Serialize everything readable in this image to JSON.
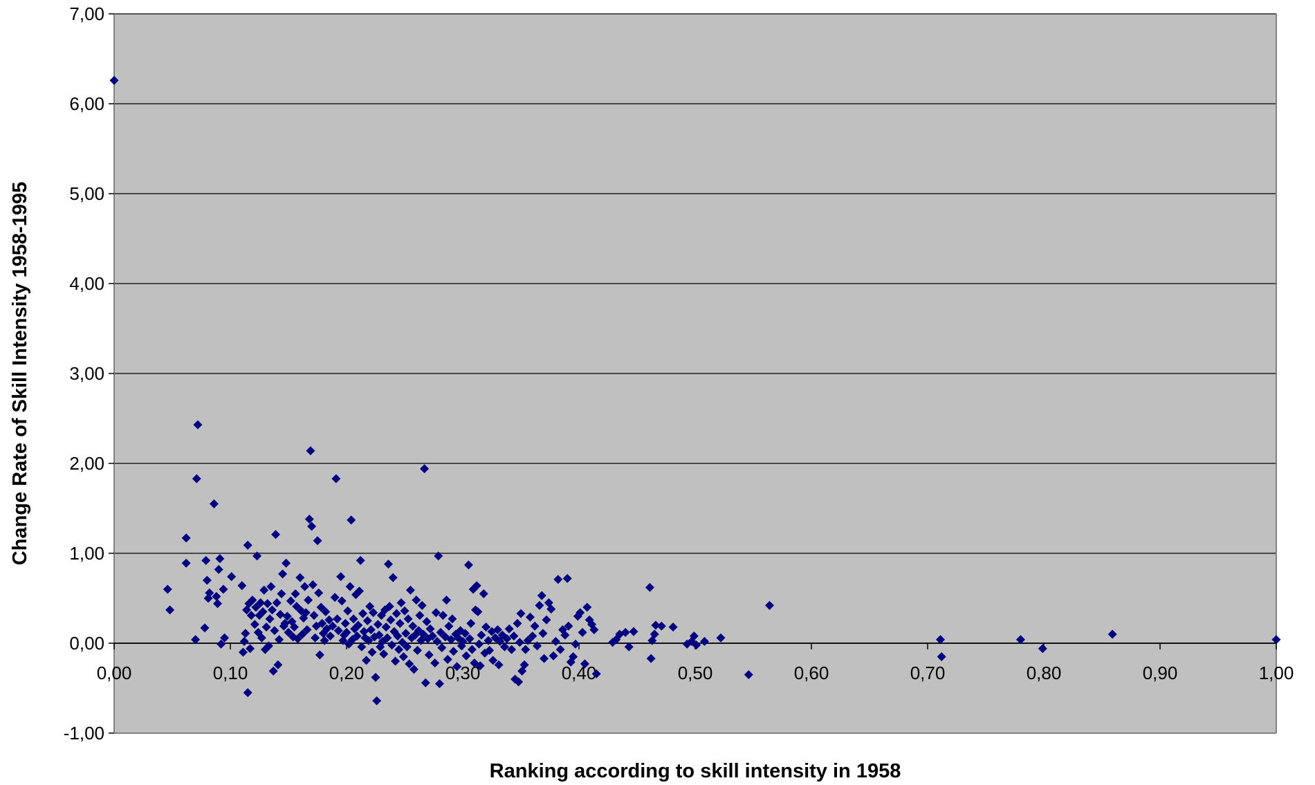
{
  "chart_data": {
    "type": "scatter",
    "title": "",
    "xlabel": "Ranking according to skill intensity in 1958",
    "ylabel": "Change Rate of Skill Intensity 1958-1995",
    "xlim": [
      0,
      1
    ],
    "ylim": [
      -1,
      7
    ],
    "x_ticks": [
      0,
      0.1,
      0.2,
      0.3,
      0.4,
      0.5,
      0.6,
      0.7,
      0.8,
      0.9,
      1.0
    ],
    "x_tick_labels": [
      "0,00",
      "0,10",
      "0,20",
      "0,30",
      "0,40",
      "0,50",
      "0,60",
      "0,70",
      "0,80",
      "0,90",
      "1,00"
    ],
    "y_ticks": [
      -1,
      0,
      1,
      2,
      3,
      4,
      5,
      6,
      7
    ],
    "y_tick_labels": [
      "-1,00",
      "0,00",
      "1,00",
      "2,00",
      "3,00",
      "4,00",
      "5,00",
      "6,00",
      "7,00"
    ],
    "grid": "horizontal",
    "legend": "none",
    "marker": "diamond",
    "colors": {
      "plot_background": "#c0c0c0",
      "marker": "#000080",
      "grid": "#000000",
      "axis": "#808080"
    },
    "series": [
      {
        "points": [
          [
            0.0,
            6.26
          ],
          [
            0.046,
            0.6
          ],
          [
            0.048,
            0.37
          ],
          [
            0.062,
            1.17
          ],
          [
            0.062,
            0.89
          ],
          [
            0.07,
            0.04
          ],
          [
            0.071,
            1.83
          ],
          [
            0.072,
            2.43
          ],
          [
            0.078,
            0.17
          ],
          [
            0.079,
            0.92
          ],
          [
            0.08,
            0.7
          ],
          [
            0.081,
            0.5
          ],
          [
            0.082,
            0.56
          ],
          [
            0.086,
            1.55
          ],
          [
            0.088,
            0.52
          ],
          [
            0.089,
            0.44
          ],
          [
            0.09,
            0.82
          ],
          [
            0.091,
            0.94
          ],
          [
            0.092,
            -0.01
          ],
          [
            0.094,
            0.6
          ],
          [
            0.095,
            0.06
          ],
          [
            0.101,
            0.74
          ],
          [
            0.11,
            0.64
          ],
          [
            0.111,
            -0.1
          ],
          [
            0.112,
            0.02
          ],
          [
            0.113,
            0.11
          ],
          [
            0.114,
            0.37
          ],
          [
            0.115,
            1.09
          ],
          [
            0.115,
            -0.55
          ],
          [
            0.116,
            0.44
          ],
          [
            0.117,
            -0.06
          ],
          [
            0.118,
            0.31
          ],
          [
            0.119,
            0.48
          ],
          [
            0.121,
            0.21
          ],
          [
            0.122,
            0.4
          ],
          [
            0.123,
            0.97
          ],
          [
            0.124,
            0.12
          ],
          [
            0.125,
            0.31
          ],
          [
            0.126,
            0.45
          ],
          [
            0.127,
            0.06
          ],
          [
            0.128,
            0.35
          ],
          [
            0.129,
            0.59
          ],
          [
            0.13,
            -0.07
          ],
          [
            0.131,
            0.18
          ],
          [
            0.132,
            0.44
          ],
          [
            0.133,
            -0.03
          ],
          [
            0.134,
            0.27
          ],
          [
            0.135,
            0.63
          ],
          [
            0.136,
            0.37
          ],
          [
            0.137,
            -0.31
          ],
          [
            0.138,
            0.14
          ],
          [
            0.139,
            1.21
          ],
          [
            0.14,
            0.45
          ],
          [
            0.141,
            -0.24
          ],
          [
            0.142,
            0.04
          ],
          [
            0.143,
            0.32
          ],
          [
            0.144,
            0.55
          ],
          [
            0.145,
            0.77
          ],
          [
            0.146,
            0.19
          ],
          [
            0.147,
            0.22
          ],
          [
            0.148,
            0.89
          ],
          [
            0.149,
            0.3
          ],
          [
            0.15,
            0.12
          ],
          [
            0.152,
            0.47
          ],
          [
            0.153,
            0.24
          ],
          [
            0.154,
            0.07
          ],
          [
            0.155,
            0.18
          ],
          [
            0.156,
            0.55
          ],
          [
            0.157,
            0.41
          ],
          [
            0.158,
            0.05
          ],
          [
            0.16,
            0.73
          ],
          [
            0.161,
            0.36
          ],
          [
            0.162,
            0.1
          ],
          [
            0.163,
            0.28
          ],
          [
            0.164,
            0.63
          ],
          [
            0.165,
            0.34
          ],
          [
            0.166,
            0.15
          ],
          [
            0.167,
            0.48
          ],
          [
            0.168,
            1.38
          ],
          [
            0.169,
            2.14
          ],
          [
            0.17,
            1.3
          ],
          [
            0.171,
            0.65
          ],
          [
            0.172,
            0.31
          ],
          [
            0.173,
            0.06
          ],
          [
            0.174,
            0.19
          ],
          [
            0.175,
            1.14
          ],
          [
            0.176,
            0.56
          ],
          [
            0.177,
            -0.13
          ],
          [
            0.178,
            0.4
          ],
          [
            0.179,
            0.22
          ],
          [
            0.18,
            0.11
          ],
          [
            0.181,
            0.03
          ],
          [
            0.182,
            0.35
          ],
          [
            0.183,
            0.16
          ],
          [
            0.185,
            0.26
          ],
          [
            0.186,
            0.08
          ],
          [
            0.188,
            0.19
          ],
          [
            0.19,
            0.51
          ],
          [
            0.191,
            1.83
          ],
          [
            0.192,
            0.27
          ],
          [
            0.193,
            0.14
          ],
          [
            0.195,
            0.74
          ],
          [
            0.196,
            0.47
          ],
          [
            0.197,
            0.03
          ],
          [
            0.198,
            0.09
          ],
          [
            0.199,
            0.22
          ],
          [
            0.2,
            0.12
          ],
          [
            0.201,
            0.36
          ],
          [
            0.202,
            -0.01
          ],
          [
            0.203,
            0.63
          ],
          [
            0.204,
            1.37
          ],
          [
            0.205,
            0.04
          ],
          [
            0.206,
            0.27
          ],
          [
            0.207,
            0.16
          ],
          [
            0.208,
            0.54
          ],
          [
            0.209,
            0.08
          ],
          [
            0.21,
            0.2
          ],
          [
            0.211,
            0.58
          ],
          [
            0.212,
            0.92
          ],
          [
            0.213,
            -0.04
          ],
          [
            0.214,
            0.33
          ],
          [
            0.215,
            0.13
          ],
          [
            0.216,
            0.06
          ],
          [
            0.217,
            -0.19
          ],
          [
            0.218,
            0.25
          ],
          [
            0.219,
            0.03
          ],
          [
            0.22,
            0.41
          ],
          [
            0.221,
            0.15
          ],
          [
            0.222,
            -0.1
          ],
          [
            0.223,
            0.34
          ],
          [
            0.224,
            0.07
          ],
          [
            0.225,
            -0.38
          ],
          [
            0.226,
            -0.64
          ],
          [
            0.227,
            0.21
          ],
          [
            0.228,
            0.09
          ],
          [
            0.229,
            -0.04
          ],
          [
            0.23,
            0.31
          ],
          [
            0.231,
            0.02
          ],
          [
            0.232,
            -0.12
          ],
          [
            0.233,
            0.37
          ],
          [
            0.234,
            0.18
          ],
          [
            0.235,
            0.06
          ],
          [
            0.236,
            0.88
          ],
          [
            0.237,
            0.41
          ],
          [
            0.238,
            0.26
          ],
          [
            0.239,
            -0.02
          ],
          [
            0.24,
            0.73
          ],
          [
            0.241,
            0.13
          ],
          [
            0.242,
            -0.2
          ],
          [
            0.243,
            0.33
          ],
          [
            0.244,
            0.08
          ],
          [
            0.245,
            -0.07
          ],
          [
            0.246,
            0.22
          ],
          [
            0.247,
            0.45
          ],
          [
            0.248,
            0.01
          ],
          [
            0.249,
            -0.15
          ],
          [
            0.25,
            0.36
          ],
          [
            0.251,
            0.11
          ],
          [
            0.252,
            -0.04
          ],
          [
            0.253,
            0.27
          ],
          [
            0.254,
            -0.23
          ],
          [
            0.255,
            0.59
          ],
          [
            0.256,
            0.06
          ],
          [
            0.257,
            0.19
          ],
          [
            0.258,
            -0.29
          ],
          [
            0.259,
            0.09
          ],
          [
            0.26,
            0.48
          ],
          [
            0.261,
            -0.08
          ],
          [
            0.262,
            0.14
          ],
          [
            0.263,
            0.31
          ],
          [
            0.264,
            0.03
          ],
          [
            0.265,
            0.42
          ],
          [
            0.266,
            0.1
          ],
          [
            0.267,
            1.94
          ],
          [
            0.268,
            -0.44
          ],
          [
            0.269,
            0.24
          ],
          [
            0.27,
            0.05
          ],
          [
            0.271,
            -0.13
          ],
          [
            0.272,
            0.16
          ],
          [
            0.274,
            0.08
          ],
          [
            0.276,
            -0.22
          ],
          [
            0.277,
            0.34
          ],
          [
            0.278,
            0.02
          ],
          [
            0.279,
            0.97
          ],
          [
            0.28,
            -0.45
          ],
          [
            0.281,
            0.12
          ],
          [
            0.282,
            -0.05
          ],
          [
            0.283,
            0.31
          ],
          [
            0.285,
            0.07
          ],
          [
            0.286,
            0.48
          ],
          [
            0.287,
            -0.18
          ],
          [
            0.288,
            0.19
          ],
          [
            0.29,
            0.04
          ],
          [
            0.291,
            0.27
          ],
          [
            0.292,
            -0.09
          ],
          [
            0.294,
            0.1
          ],
          [
            0.295,
            -0.26
          ],
          [
            0.296,
            0.06
          ],
          [
            0.298,
            0.14
          ],
          [
            0.299,
            -0.03
          ],
          [
            0.3,
            0.02
          ],
          [
            0.302,
            0.11
          ],
          [
            0.303,
            -0.14
          ],
          [
            0.305,
            0.87
          ],
          [
            0.306,
            0.05
          ],
          [
            0.307,
            0.22
          ],
          [
            0.308,
            -0.07
          ],
          [
            0.309,
            0.6
          ],
          [
            0.31,
            -0.22
          ],
          [
            0.311,
            0.37
          ],
          [
            0.312,
            0.64
          ],
          [
            0.313,
            0.35
          ],
          [
            0.314,
            -0.01
          ],
          [
            0.315,
            -0.25
          ],
          [
            0.316,
            0.09
          ],
          [
            0.318,
            0.55
          ],
          [
            0.319,
            -0.11
          ],
          [
            0.32,
            0.18
          ],
          [
            0.322,
            0.03
          ],
          [
            0.323,
            -0.08
          ],
          [
            0.325,
            0.13
          ],
          [
            0.326,
            -0.19
          ],
          [
            0.328,
            0.06
          ],
          [
            0.33,
            0.15
          ],
          [
            0.331,
            -0.24
          ],
          [
            0.332,
            0.02
          ],
          [
            0.334,
            0.09
          ],
          [
            0.336,
            -0.04
          ],
          [
            0.338,
            0.05
          ],
          [
            0.34,
            0.16
          ],
          [
            0.342,
            -0.07
          ],
          [
            0.344,
            0.08
          ],
          [
            0.345,
            -0.4
          ],
          [
            0.347,
            0.22
          ],
          [
            0.348,
            -0.43
          ],
          [
            0.349,
            0.01
          ],
          [
            0.35,
            0.33
          ],
          [
            0.351,
            -0.31
          ],
          [
            0.353,
            -0.24
          ],
          [
            0.354,
            -0.07
          ],
          [
            0.356,
            0.03
          ],
          [
            0.358,
            0.29
          ],
          [
            0.36,
            0.08
          ],
          [
            0.362,
            0.19
          ],
          [
            0.364,
            -0.03
          ],
          [
            0.366,
            0.42
          ],
          [
            0.368,
            0.53
          ],
          [
            0.369,
            0.11
          ],
          [
            0.37,
            -0.17
          ],
          [
            0.372,
            0.26
          ],
          [
            0.374,
            0.45
          ],
          [
            0.376,
            0.38
          ],
          [
            0.378,
            -0.14
          ],
          [
            0.38,
            0.02
          ],
          [
            0.382,
            0.71
          ],
          [
            0.384,
            -0.07
          ],
          [
            0.386,
            0.15
          ],
          [
            0.388,
            0.09
          ],
          [
            0.39,
            0.72
          ],
          [
            0.391,
            0.19
          ],
          [
            0.393,
            -0.21
          ],
          [
            0.395,
            -0.15
          ],
          [
            0.397,
            -0.01
          ],
          [
            0.399,
            0.3
          ],
          [
            0.401,
            0.34
          ],
          [
            0.403,
            0.12
          ],
          [
            0.405,
            -0.23
          ],
          [
            0.407,
            0.4
          ],
          [
            0.409,
            0.26
          ],
          [
            0.411,
            0.21
          ],
          [
            0.413,
            0.15
          ],
          [
            0.415,
            -0.34
          ],
          [
            0.429,
            0.01
          ],
          [
            0.432,
            0.04
          ],
          [
            0.435,
            0.1
          ],
          [
            0.44,
            0.12
          ],
          [
            0.443,
            -0.04
          ],
          [
            0.447,
            0.13
          ],
          [
            0.461,
            0.62
          ],
          [
            0.462,
            -0.17
          ],
          [
            0.463,
            0.03
          ],
          [
            0.465,
            0.1
          ],
          [
            0.466,
            0.2
          ],
          [
            0.471,
            0.19
          ],
          [
            0.481,
            0.18
          ],
          [
            0.493,
            -0.01
          ],
          [
            0.497,
            0.02
          ],
          [
            0.499,
            0.08
          ],
          [
            0.501,
            -0.02
          ],
          [
            0.508,
            0.02
          ],
          [
            0.522,
            0.06
          ],
          [
            0.546,
            -0.35
          ],
          [
            0.564,
            0.42
          ],
          [
            0.711,
            0.04
          ],
          [
            0.712,
            -0.15
          ],
          [
            0.78,
            0.04
          ],
          [
            0.799,
            -0.06
          ],
          [
            0.859,
            0.1
          ],
          [
            1.0,
            0.04
          ]
        ]
      }
    ]
  }
}
